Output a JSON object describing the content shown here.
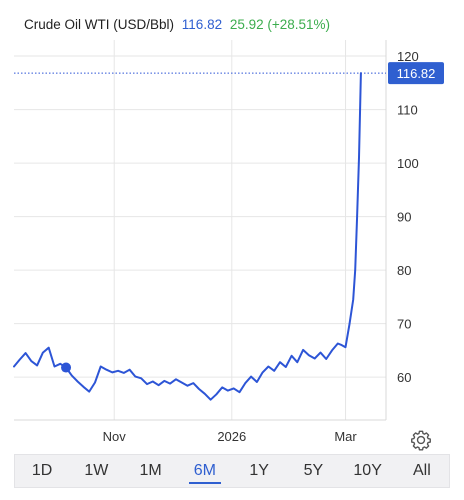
{
  "header": {
    "name": "Crude Oil WTI (USD/Bbl)",
    "price": "116.82",
    "change": "25.92 (+28.51%)"
  },
  "colors": {
    "line": "#2d55d6",
    "price_tag": "#2f5fd0",
    "change_positive": "#3cad4e",
    "grid": "#e6e6e6"
  },
  "ranges": {
    "options": [
      "1D",
      "1W",
      "1M",
      "6M",
      "1Y",
      "5Y",
      "10Y",
      "All"
    ],
    "selected": "6M"
  },
  "settings_icon": "gear-icon",
  "chart_data": {
    "type": "line",
    "title": "Crude Oil WTI (USD/Bbl)",
    "series": [
      {
        "name": "Crude Oil WTI (USD/Bbl)",
        "x": [
          "2025-09-10",
          "2025-09-13",
          "2025-09-16",
          "2025-09-19",
          "2025-09-22",
          "2025-09-25",
          "2025-09-28",
          "2025-10-01",
          "2025-10-04",
          "2025-10-07",
          "2025-10-10",
          "2025-10-13",
          "2025-10-16",
          "2025-10-19",
          "2025-10-22",
          "2025-10-25",
          "2025-10-28",
          "2025-10-31",
          "2025-11-03",
          "2025-11-06",
          "2025-11-09",
          "2025-11-12",
          "2025-11-15",
          "2025-11-18",
          "2025-11-21",
          "2025-11-24",
          "2025-11-27",
          "2025-11-30",
          "2025-12-03",
          "2025-12-06",
          "2025-12-09",
          "2025-12-12",
          "2025-12-15",
          "2025-12-18",
          "2025-12-21",
          "2025-12-24",
          "2025-12-27",
          "2025-12-30",
          "2026-01-02",
          "2026-01-05",
          "2026-01-08",
          "2026-01-11",
          "2026-01-14",
          "2026-01-17",
          "2026-01-20",
          "2026-01-23",
          "2026-01-26",
          "2026-01-29",
          "2026-02-01",
          "2026-02-04",
          "2026-02-07",
          "2026-02-10",
          "2026-02-13",
          "2026-02-16",
          "2026-02-19",
          "2026-02-22",
          "2026-02-25",
          "2026-02-27",
          "2026-03-01",
          "2026-03-03",
          "2026-03-05",
          "2026-03-06",
          "2026-03-07",
          "2026-03-08",
          "2026-03-09"
        ],
        "y": [
          62.0,
          63.3,
          64.5,
          63.0,
          62.2,
          64.6,
          65.5,
          62.0,
          62.5,
          61.8,
          60.3,
          59.2,
          58.2,
          57.3,
          59.0,
          62.0,
          61.4,
          60.9,
          61.2,
          60.8,
          61.4,
          60.1,
          59.8,
          58.7,
          59.2,
          58.5,
          59.3,
          58.8,
          59.6,
          59.0,
          58.4,
          58.9,
          57.8,
          56.9,
          55.8,
          56.8,
          58.1,
          57.5,
          57.9,
          57.2,
          58.9,
          60.1,
          59.1,
          60.9,
          62.0,
          61.2,
          62.8,
          61.9,
          64.0,
          62.8,
          65.1,
          64.1,
          63.5,
          64.6,
          63.4,
          65.0,
          66.3,
          66.0,
          65.6,
          69.8,
          74.5,
          80.0,
          90.0,
          101.0,
          116.82
        ]
      }
    ],
    "marker": {
      "x": "2025-10-07",
      "y": 61.8
    },
    "last_value_label": "116.82",
    "xticks": [
      {
        "label": "Nov",
        "x": "2025-11-01"
      },
      {
        "label": "2026",
        "x": "2026-01-01"
      },
      {
        "label": "Mar",
        "x": "2026-03-01"
      }
    ],
    "yticks": [
      60,
      70,
      80,
      90,
      100,
      110,
      120
    ],
    "ylim": [
      52,
      123
    ],
    "xlim": [
      "2025-09-10",
      "2026-03-22"
    ],
    "grid": true,
    "y_axis_position": "right",
    "legend": "none"
  }
}
